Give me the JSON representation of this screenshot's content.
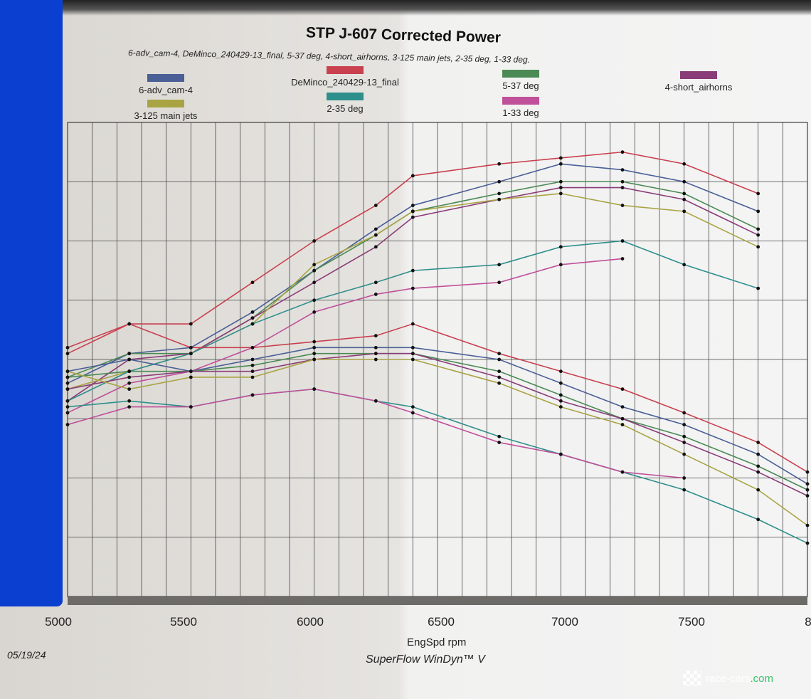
{
  "chart_data": {
    "type": "line",
    "title": "STP J-607 Corrected Power",
    "subtitle": "6-adv_cam-4, DeMinco_240429-13_final, 5-37 deg, 4-short_airhorns, 3-125 main jets, 2-35 deg, 1-33 deg.",
    "xlabel": "EngSpd rpm",
    "ylabel": "",
    "xlim": [
      5000,
      8000
    ],
    "ylim": [
      0,
      8
    ],
    "grid": true,
    "xticks": [
      "5000",
      "5500",
      "6000",
      "6500",
      "7000",
      "7500",
      "8"
    ],
    "x": [
      5000,
      5250,
      5500,
      5750,
      6000,
      6250,
      6400,
      6750,
      7000,
      7250,
      7500,
      7800,
      8000
    ],
    "legend": [
      {
        "name": "6-adv_cam-4",
        "color": "#4a5f96"
      },
      {
        "name": "DeMinco_240429-13_final",
        "color": "#c9404f"
      },
      {
        "name": "5-37 deg",
        "color": "#4b8a55"
      },
      {
        "name": "4-short_airhorns",
        "color": "#8a3c78"
      },
      {
        "name": "3-125 main jets",
        "color": "#a9a443"
      },
      {
        "name": "2-35 deg",
        "color": "#2f8f8c"
      },
      {
        "name": "1-33 deg",
        "color": "#c0509a"
      }
    ],
    "series": [
      {
        "name": "6-adv_cam-4 power",
        "color": "#4a5f96",
        "values": [
          3.6,
          4.1,
          4.2,
          4.8,
          5.5,
          6.2,
          6.6,
          7.0,
          7.3,
          7.2,
          7.0,
          6.5,
          null
        ]
      },
      {
        "name": "DeMinco_240429-13_final power",
        "color": "#c9404f",
        "values": [
          4.2,
          4.6,
          4.6,
          5.3,
          6.0,
          6.6,
          7.1,
          7.3,
          7.4,
          7.5,
          7.3,
          6.8,
          null
        ]
      },
      {
        "name": "5-37 deg power",
        "color": "#4b8a55",
        "values": [
          3.7,
          4.1,
          4.1,
          4.7,
          5.5,
          6.1,
          6.5,
          6.8,
          7.0,
          7.0,
          6.8,
          6.2,
          null
        ]
      },
      {
        "name": "4-short_airhorns power",
        "color": "#8a3c78",
        "values": [
          3.3,
          4.0,
          4.1,
          4.7,
          5.3,
          5.9,
          6.4,
          6.7,
          6.9,
          6.9,
          6.7,
          6.1,
          null
        ]
      },
      {
        "name": "3-125 main jets power",
        "color": "#a9a443",
        "values": [
          3.5,
          3.8,
          4.1,
          4.6,
          5.6,
          6.1,
          6.5,
          6.7,
          6.8,
          6.6,
          6.5,
          5.9,
          null
        ]
      },
      {
        "name": "2-35 deg power",
        "color": "#2f8f8c",
        "values": [
          3.3,
          3.8,
          4.1,
          4.6,
          5.0,
          5.3,
          5.5,
          5.6,
          5.9,
          6.0,
          5.6,
          5.2,
          null
        ]
      },
      {
        "name": "1-33 deg power",
        "color": "#c0509a",
        "values": [
          3.1,
          3.6,
          3.8,
          4.2,
          4.8,
          5.1,
          5.2,
          5.3,
          5.6,
          5.7,
          null,
          null,
          null
        ]
      },
      {
        "name": "6-adv_cam-4 torque",
        "color": "#4a5f96",
        "values": [
          3.8,
          4.0,
          3.8,
          4.0,
          4.2,
          4.2,
          4.2,
          4.0,
          3.6,
          3.2,
          2.9,
          2.4,
          1.9
        ]
      },
      {
        "name": "DeMinco_240429-13_final torque",
        "color": "#c9404f",
        "values": [
          4.1,
          4.6,
          4.2,
          4.2,
          4.3,
          4.4,
          4.6,
          4.1,
          3.8,
          3.5,
          3.1,
          2.6,
          2.1
        ]
      },
      {
        "name": "5-37 deg torque",
        "color": "#4b8a55",
        "values": [
          3.7,
          3.8,
          3.8,
          3.9,
          4.1,
          4.1,
          4.1,
          3.8,
          3.4,
          3.0,
          2.7,
          2.2,
          1.8
        ]
      },
      {
        "name": "4-short_airhorns torque",
        "color": "#8a3c78",
        "values": [
          3.5,
          3.7,
          3.8,
          3.8,
          4.0,
          4.1,
          4.1,
          3.7,
          3.3,
          3.0,
          2.6,
          2.1,
          1.7
        ]
      },
      {
        "name": "3-125 main jets torque",
        "color": "#a9a443",
        "values": [
          3.8,
          3.5,
          3.7,
          3.7,
          4.0,
          4.0,
          4.0,
          3.6,
          3.2,
          2.9,
          2.4,
          1.8,
          1.2
        ]
      },
      {
        "name": "2-35 deg torque",
        "color": "#2f8f8c",
        "values": [
          3.2,
          3.3,
          3.2,
          3.4,
          3.5,
          3.3,
          3.2,
          2.7,
          2.4,
          2.1,
          1.8,
          1.3,
          0.9
        ]
      },
      {
        "name": "1-33 deg torque",
        "color": "#c0509a",
        "values": [
          2.9,
          3.2,
          3.2,
          3.4,
          3.5,
          3.3,
          3.1,
          2.6,
          2.4,
          2.1,
          2.0,
          null,
          null
        ]
      }
    ]
  },
  "footer": {
    "date": "05/19/24",
    "software": "SuperFlow WinDyn™ V"
  },
  "watermark": {
    "name": "race-cars",
    "suffix": ".com"
  }
}
